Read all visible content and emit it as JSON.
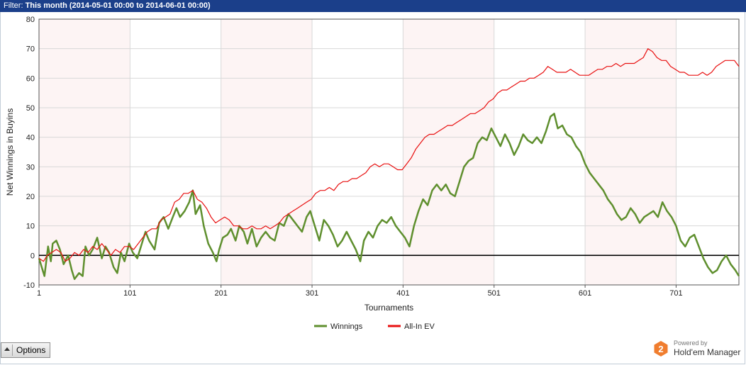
{
  "filter": {
    "label": "Filter:",
    "value": "This month (2014-05-01 00:00 to 2014-06-01 00:00)"
  },
  "options_label": "Options",
  "brand": {
    "powered": "Powered by",
    "name": "Hold'em Manager",
    "badge": "2",
    "color": "#f07d2e"
  },
  "colors": {
    "winnings": "#5f8f2e",
    "allin_ev": "#e81010",
    "band": "#fdf4f4",
    "zero_line": "#000000"
  },
  "chart_data": {
    "type": "line",
    "xlabel": "Tournaments",
    "ylabel": "Net Winnings in Buyins",
    "xlim": [
      1,
      770
    ],
    "ylim": [
      -10,
      80
    ],
    "x_ticks": [
      1,
      101,
      201,
      301,
      401,
      501,
      601,
      701
    ],
    "y_ticks": [
      -10,
      0,
      10,
      20,
      30,
      40,
      50,
      60,
      70,
      80
    ],
    "grid": true,
    "legend_placement": "bottom-center",
    "shaded_bands": [
      [
        1,
        101
      ],
      [
        201,
        301
      ],
      [
        401,
        501
      ],
      [
        601,
        701
      ]
    ],
    "series": [
      {
        "name": "Winnings",
        "color": "#5f8f2e",
        "points": [
          [
            1,
            -1
          ],
          [
            7,
            -7
          ],
          [
            11,
            3
          ],
          [
            14,
            -2
          ],
          [
            16,
            4
          ],
          [
            20,
            5
          ],
          [
            24,
            2
          ],
          [
            28,
            -3
          ],
          [
            33,
            0
          ],
          [
            37,
            -5
          ],
          [
            40,
            -8
          ],
          [
            45,
            -6
          ],
          [
            49,
            -7
          ],
          [
            52,
            3
          ],
          [
            56,
            0
          ],
          [
            60,
            2
          ],
          [
            65,
            6
          ],
          [
            70,
            -1
          ],
          [
            74,
            3
          ],
          [
            78,
            1
          ],
          [
            83,
            -4
          ],
          [
            87,
            -6
          ],
          [
            91,
            1
          ],
          [
            95,
            -2
          ],
          [
            100,
            4
          ],
          [
            104,
            1
          ],
          [
            109,
            -1
          ],
          [
            113,
            3
          ],
          [
            118,
            8
          ],
          [
            122,
            5
          ],
          [
            128,
            2
          ],
          [
            133,
            11
          ],
          [
            138,
            13
          ],
          [
            143,
            9
          ],
          [
            148,
            13
          ],
          [
            152,
            16
          ],
          [
            156,
            13
          ],
          [
            161,
            15
          ],
          [
            166,
            18
          ],
          [
            170,
            22
          ],
          [
            173,
            14
          ],
          [
            178,
            17
          ],
          [
            182,
            10
          ],
          [
            187,
            4
          ],
          [
            192,
            1
          ],
          [
            196,
            -2
          ],
          [
            199,
            2
          ],
          [
            203,
            6
          ],
          [
            208,
            7
          ],
          [
            212,
            9
          ],
          [
            217,
            5
          ],
          [
            221,
            10
          ],
          [
            226,
            8
          ],
          [
            230,
            4
          ],
          [
            235,
            9
          ],
          [
            240,
            3
          ],
          [
            245,
            6
          ],
          [
            250,
            8
          ],
          [
            255,
            6
          ],
          [
            260,
            5
          ],
          [
            265,
            11
          ],
          [
            270,
            10
          ],
          [
            275,
            14
          ],
          [
            280,
            12
          ],
          [
            285,
            10
          ],
          [
            290,
            8
          ],
          [
            295,
            13
          ],
          [
            299,
            15
          ],
          [
            304,
            10
          ],
          [
            309,
            5
          ],
          [
            314,
            12
          ],
          [
            319,
            10
          ],
          [
            324,
            7
          ],
          [
            329,
            3
          ],
          [
            334,
            5
          ],
          [
            339,
            8
          ],
          [
            344,
            5
          ],
          [
            349,
            2
          ],
          [
            354,
            -2
          ],
          [
            358,
            5
          ],
          [
            363,
            8
          ],
          [
            368,
            6
          ],
          [
            373,
            10
          ],
          [
            378,
            12
          ],
          [
            383,
            11
          ],
          [
            388,
            13
          ],
          [
            393,
            10
          ],
          [
            398,
            8
          ],
          [
            403,
            6
          ],
          [
            408,
            3
          ],
          [
            413,
            10
          ],
          [
            418,
            15
          ],
          [
            423,
            19
          ],
          [
            428,
            17
          ],
          [
            433,
            22
          ],
          [
            438,
            24
          ],
          [
            443,
            22
          ],
          [
            448,
            24
          ],
          [
            453,
            21
          ],
          [
            458,
            20
          ],
          [
            463,
            25
          ],
          [
            468,
            30
          ],
          [
            473,
            32
          ],
          [
            478,
            33
          ],
          [
            483,
            38
          ],
          [
            488,
            40
          ],
          [
            493,
            39
          ],
          [
            498,
            43
          ],
          [
            503,
            40
          ],
          [
            508,
            37
          ],
          [
            513,
            41
          ],
          [
            518,
            38
          ],
          [
            523,
            34
          ],
          [
            528,
            37
          ],
          [
            533,
            41
          ],
          [
            538,
            39
          ],
          [
            543,
            38
          ],
          [
            548,
            40
          ],
          [
            553,
            38
          ],
          [
            558,
            42
          ],
          [
            563,
            47
          ],
          [
            567,
            48
          ],
          [
            571,
            43
          ],
          [
            576,
            44
          ],
          [
            581,
            41
          ],
          [
            586,
            40
          ],
          [
            591,
            37
          ],
          [
            596,
            35
          ],
          [
            601,
            31
          ],
          [
            606,
            28
          ],
          [
            611,
            26
          ],
          [
            616,
            24
          ],
          [
            621,
            22
          ],
          [
            626,
            19
          ],
          [
            631,
            17
          ],
          [
            636,
            14
          ],
          [
            641,
            12
          ],
          [
            646,
            13
          ],
          [
            651,
            16
          ],
          [
            656,
            14
          ],
          [
            661,
            11
          ],
          [
            666,
            13
          ],
          [
            671,
            14
          ],
          [
            676,
            15
          ],
          [
            681,
            13
          ],
          [
            686,
            18
          ],
          [
            691,
            15
          ],
          [
            696,
            13
          ],
          [
            701,
            10
          ],
          [
            706,
            5
          ],
          [
            711,
            3
          ],
          [
            716,
            6
          ],
          [
            721,
            7
          ],
          [
            726,
            3
          ],
          [
            731,
            -1
          ],
          [
            736,
            -4
          ],
          [
            741,
            -6
          ],
          [
            746,
            -5
          ],
          [
            751,
            -2
          ],
          [
            756,
            0
          ],
          [
            761,
            -3
          ],
          [
            766,
            -5
          ],
          [
            770,
            -7
          ]
        ]
      },
      {
        "name": "All-In EV",
        "color": "#e81010",
        "points": [
          [
            1,
            -1
          ],
          [
            6,
            -2
          ],
          [
            10,
            0
          ],
          [
            15,
            1
          ],
          [
            20,
            2
          ],
          [
            25,
            1
          ],
          [
            30,
            -2
          ],
          [
            35,
            -1
          ],
          [
            40,
            1
          ],
          [
            45,
            0
          ],
          [
            50,
            2
          ],
          [
            55,
            1
          ],
          [
            60,
            3
          ],
          [
            65,
            2
          ],
          [
            70,
            4
          ],
          [
            75,
            2
          ],
          [
            80,
            0
          ],
          [
            85,
            2
          ],
          [
            90,
            1
          ],
          [
            95,
            3
          ],
          [
            100,
            3
          ],
          [
            105,
            2
          ],
          [
            110,
            4
          ],
          [
            115,
            6
          ],
          [
            120,
            8
          ],
          [
            125,
            9
          ],
          [
            130,
            9
          ],
          [
            135,
            12
          ],
          [
            140,
            13
          ],
          [
            145,
            14
          ],
          [
            150,
            18
          ],
          [
            155,
            19
          ],
          [
            160,
            21
          ],
          [
            165,
            21
          ],
          [
            170,
            22
          ],
          [
            175,
            19
          ],
          [
            180,
            18
          ],
          [
            185,
            16
          ],
          [
            190,
            13
          ],
          [
            195,
            11
          ],
          [
            200,
            12
          ],
          [
            205,
            13
          ],
          [
            210,
            12
          ],
          [
            215,
            10
          ],
          [
            220,
            10
          ],
          [
            225,
            9
          ],
          [
            230,
            9
          ],
          [
            235,
            10
          ],
          [
            240,
            9
          ],
          [
            245,
            9
          ],
          [
            250,
            10
          ],
          [
            255,
            9
          ],
          [
            260,
            10
          ],
          [
            265,
            11
          ],
          [
            270,
            13
          ],
          [
            275,
            14
          ],
          [
            280,
            15
          ],
          [
            285,
            16
          ],
          [
            290,
            17
          ],
          [
            295,
            18
          ],
          [
            300,
            19
          ],
          [
            305,
            21
          ],
          [
            310,
            22
          ],
          [
            315,
            22
          ],
          [
            320,
            23
          ],
          [
            325,
            22
          ],
          [
            330,
            24
          ],
          [
            335,
            25
          ],
          [
            340,
            25
          ],
          [
            345,
            26
          ],
          [
            350,
            26
          ],
          [
            355,
            27
          ],
          [
            360,
            28
          ],
          [
            365,
            30
          ],
          [
            370,
            31
          ],
          [
            375,
            30
          ],
          [
            380,
            31
          ],
          [
            385,
            31
          ],
          [
            390,
            30
          ],
          [
            395,
            29
          ],
          [
            400,
            29
          ],
          [
            405,
            31
          ],
          [
            410,
            33
          ],
          [
            415,
            36
          ],
          [
            420,
            38
          ],
          [
            425,
            40
          ],
          [
            430,
            41
          ],
          [
            435,
            41
          ],
          [
            440,
            42
          ],
          [
            445,
            43
          ],
          [
            450,
            44
          ],
          [
            455,
            44
          ],
          [
            460,
            45
          ],
          [
            465,
            46
          ],
          [
            470,
            47
          ],
          [
            475,
            48
          ],
          [
            480,
            48
          ],
          [
            485,
            49
          ],
          [
            490,
            50
          ],
          [
            495,
            52
          ],
          [
            500,
            53
          ],
          [
            505,
            55
          ],
          [
            510,
            56
          ],
          [
            515,
            56
          ],
          [
            520,
            57
          ],
          [
            525,
            58
          ],
          [
            530,
            59
          ],
          [
            535,
            59
          ],
          [
            540,
            60
          ],
          [
            545,
            60
          ],
          [
            550,
            61
          ],
          [
            555,
            62
          ],
          [
            560,
            64
          ],
          [
            565,
            63
          ],
          [
            570,
            62
          ],
          [
            575,
            62
          ],
          [
            580,
            62
          ],
          [
            585,
            63
          ],
          [
            590,
            62
          ],
          [
            595,
            61
          ],
          [
            600,
            61
          ],
          [
            605,
            61
          ],
          [
            610,
            62
          ],
          [
            615,
            63
          ],
          [
            620,
            63
          ],
          [
            625,
            64
          ],
          [
            630,
            64
          ],
          [
            635,
            65
          ],
          [
            640,
            64
          ],
          [
            645,
            65
          ],
          [
            650,
            65
          ],
          [
            655,
            65
          ],
          [
            660,
            66
          ],
          [
            665,
            67
          ],
          [
            670,
            70
          ],
          [
            675,
            69
          ],
          [
            680,
            67
          ],
          [
            685,
            66
          ],
          [
            690,
            66
          ],
          [
            695,
            64
          ],
          [
            700,
            63
          ],
          [
            705,
            62
          ],
          [
            710,
            62
          ],
          [
            715,
            61
          ],
          [
            720,
            61
          ],
          [
            725,
            61
          ],
          [
            730,
            62
          ],
          [
            735,
            61
          ],
          [
            740,
            62
          ],
          [
            745,
            64
          ],
          [
            750,
            65
          ],
          [
            755,
            66
          ],
          [
            760,
            66
          ],
          [
            765,
            66
          ],
          [
            770,
            64
          ]
        ]
      }
    ]
  }
}
